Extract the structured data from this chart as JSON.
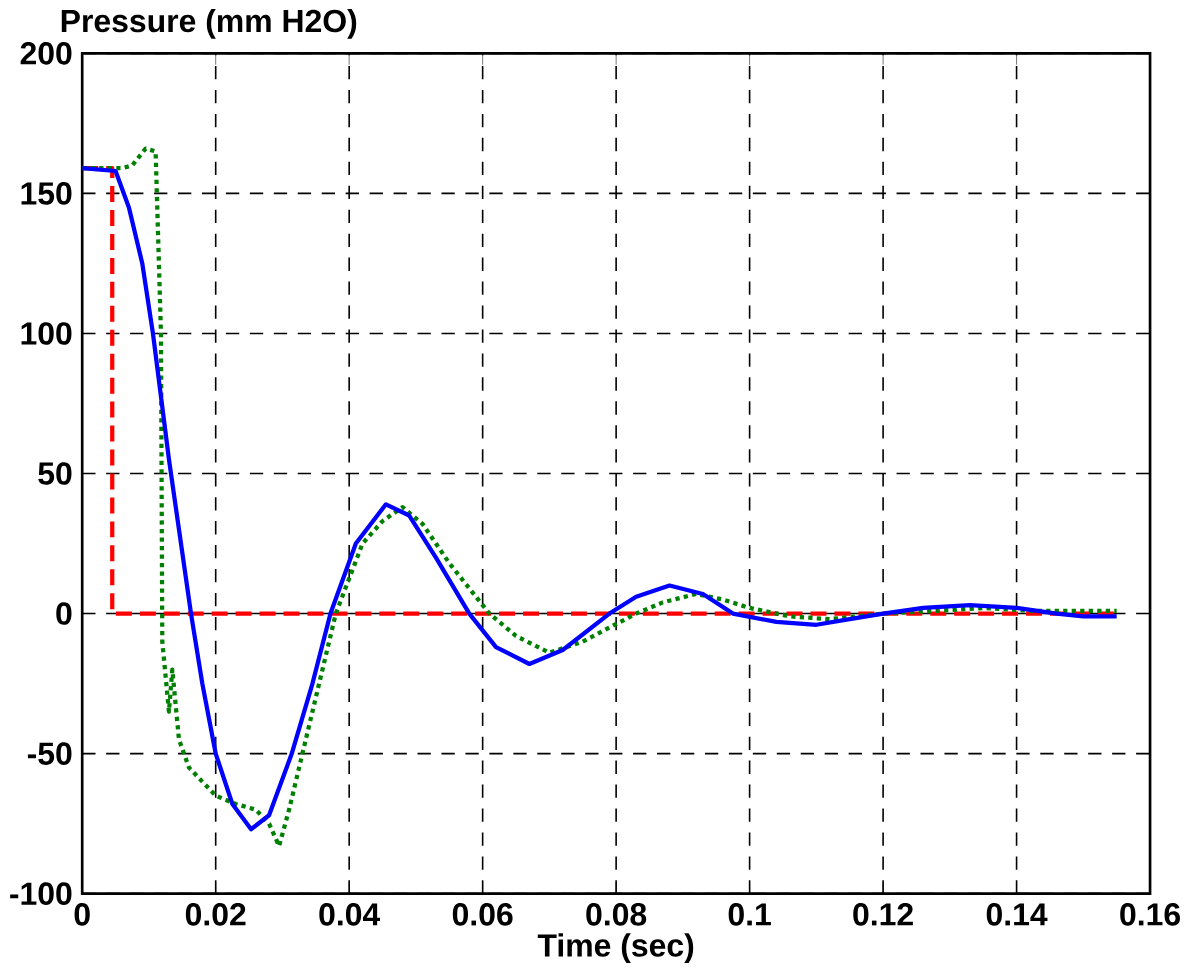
{
  "chart_data": {
    "type": "line",
    "xlabel": "Time (sec)",
    "ylabel": "Pressure (mm H2O)",
    "xlim": [
      0,
      0.16
    ],
    "ylim": [
      -100,
      200
    ],
    "xticks": [
      0,
      0.02,
      0.04,
      0.06,
      0.08,
      0.1,
      0.12,
      0.14,
      0.16
    ],
    "yticks": [
      -100,
      -50,
      0,
      50,
      100,
      150,
      200
    ],
    "grid": true,
    "series": [
      {
        "color": "#ff0000",
        "line_style": "dashed",
        "x": [
          0,
          0.0045,
          0.0045,
          0.155
        ],
        "values": [
          159,
          159,
          0,
          0
        ]
      },
      {
        "color": "#008000",
        "line_style": "dotted",
        "x": [
          0,
          0.006,
          0.0075,
          0.0095,
          0.011,
          0.0118,
          0.012,
          0.013,
          0.0135,
          0.0145,
          0.016,
          0.018,
          0.02,
          0.023,
          0.026,
          0.028,
          0.0295,
          0.031,
          0.033,
          0.0355,
          0.038,
          0.042,
          0.045,
          0.048,
          0.051,
          0.055,
          0.061,
          0.065,
          0.07,
          0.075,
          0.083,
          0.087,
          0.092,
          0.096,
          0.1,
          0.106,
          0.112,
          0.116,
          0.12,
          0.128,
          0.135,
          0.142,
          0.148,
          0.155
        ],
        "values": [
          159,
          159,
          160,
          166,
          165,
          100,
          -10,
          -35,
          -20,
          -45,
          -55,
          -60,
          -65,
          -68,
          -70,
          -75,
          -83,
          -70,
          -50,
          -25,
          0,
          25,
          33,
          38,
          32,
          18,
          0,
          -8,
          -14,
          -10,
          0,
          4,
          7,
          5,
          2,
          -1,
          -2,
          -1,
          0,
          1,
          2,
          1,
          1,
          1
        ]
      },
      {
        "color": "#0000ff",
        "line_style": "solid",
        "x": [
          0,
          0.005,
          0.007,
          0.009,
          0.0106,
          0.013,
          0.0163,
          0.018,
          0.02,
          0.0225,
          0.0253,
          0.028,
          0.0314,
          0.0345,
          0.0372,
          0.041,
          0.0455,
          0.049,
          0.053,
          0.058,
          0.062,
          0.067,
          0.072,
          0.079,
          0.083,
          0.088,
          0.093,
          0.0975,
          0.104,
          0.11,
          0.115,
          0.12,
          0.126,
          0.133,
          0.14,
          0.146,
          0.15,
          0.155
        ],
        "values": [
          159,
          158,
          145,
          125,
          100,
          55,
          0,
          -25,
          -50,
          -68,
          -77,
          -72,
          -50,
          -25,
          0,
          25,
          39,
          35,
          20,
          0,
          -12,
          -18,
          -13,
          0,
          6,
          10,
          7,
          0,
          -3,
          -4,
          -2,
          0,
          2,
          3,
          2,
          0,
          -1,
          -1
        ]
      }
    ]
  }
}
